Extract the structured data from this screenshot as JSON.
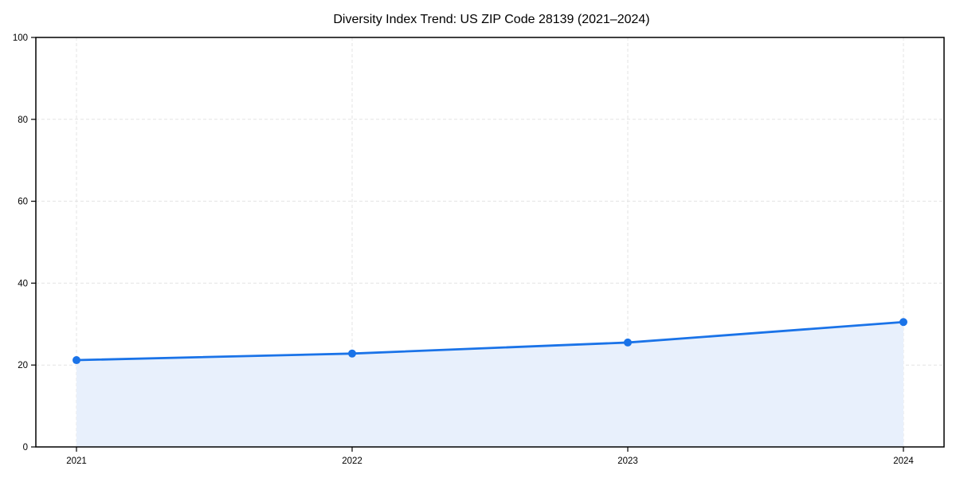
{
  "chart_data": {
    "type": "area",
    "title": "Diversity Index Trend: US ZIP Code 28139 (2021–2024)",
    "series_name": "Diversity Index",
    "categories": [
      "2021",
      "2022",
      "2023",
      "2024"
    ],
    "x": [
      2021,
      2022,
      2023,
      2024
    ],
    "values": [
      21.2,
      22.8,
      25.5,
      30.5
    ],
    "xlabel": "",
    "ylabel": "",
    "ylim": [
      0,
      100
    ],
    "yticks": [
      0,
      20,
      40,
      60,
      80,
      100
    ],
    "grid": "dashed",
    "legend": "none",
    "colors": {
      "line": "#1a73e8",
      "marker": "#1a73e8",
      "fill": "#e8f0fc",
      "grid": "#e3e3e3",
      "axis": "#000000",
      "text": "#000000",
      "background": "#ffffff"
    }
  }
}
